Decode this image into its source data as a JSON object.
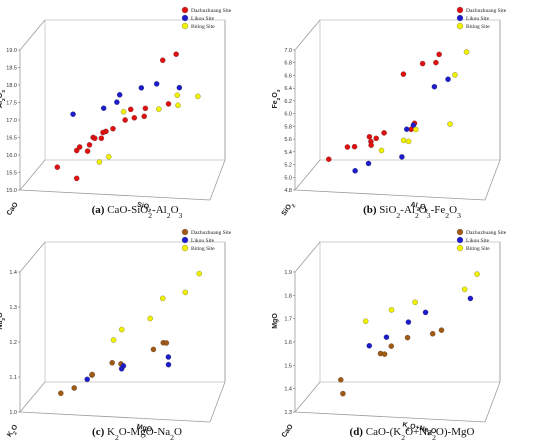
{
  "colors": {
    "Dazhuzhuang Site": "#e01010",
    "Likou Site": "#1c1ccc",
    "Biting Site": "#f0f000",
    "Dazhuzhuang Site (c,d)": "#a05a14"
  },
  "chart_data": [
    {
      "type": "scatter",
      "panel": "a",
      "caption_label": "(a)",
      "caption_text": "CaO-SiO2-Al2O3",
      "zlabel": "Al2O3",
      "xlabel": "SiO2",
      "ylabel": "CaO",
      "zticks": [
        "15.0",
        "15.5",
        "16.0",
        "16.5",
        "17.0",
        "17.5",
        "18.0",
        "18.5",
        "19.0"
      ],
      "zlim": [
        15.0,
        19.0
      ],
      "legend": [
        "Dazhuzhuang Site",
        "Likou Site",
        "Biting Site"
      ],
      "series": [
        {
          "name": "Dazhuzhuang Site",
          "values": [
            15.2,
            15.4,
            15.8,
            15.9,
            16.0,
            16.1,
            16.2,
            16.2,
            16.3,
            16.4,
            16.5,
            16.6,
            16.7,
            16.8,
            16.9,
            17.0,
            17.0,
            17.2,
            18.5,
            18.6
          ]
        },
        {
          "name": "Likou Site",
          "values": [
            17.0,
            17.2,
            17.3,
            17.5,
            17.6,
            17.7,
            17.8
          ]
        },
        {
          "name": "Biting Site",
          "values": [
            15.6,
            15.7,
            16.9,
            17.1,
            17.3,
            17.4,
            17.5
          ]
        }
      ]
    },
    {
      "type": "scatter",
      "panel": "b",
      "caption_label": "(b)",
      "caption_text": "SiO2-Al2O3-Fe2O3",
      "zlabel": "Fe2O3",
      "xlabel": "Al2O3",
      "ylabel": "SiO2",
      "zticks": [
        "4.8",
        "5.0",
        "5.2",
        "5.4",
        "5.6",
        "5.8",
        "6.0",
        "6.2",
        "6.4",
        "6.6",
        "6.8",
        "7.0"
      ],
      "zlim": [
        4.8,
        7.0
      ],
      "legend": [
        "Dazhuzhuang Site",
        "Likou Site",
        "Biting Site"
      ],
      "series": [
        {
          "name": "Dazhuzhuang Site",
          "values": [
            5.2,
            5.3,
            5.3,
            5.4,
            5.4,
            5.5,
            5.5,
            5.6,
            5.6,
            5.7,
            6.5,
            6.6,
            6.7,
            6.8
          ]
        },
        {
          "name": "Likou Site",
          "values": [
            5.0,
            5.1,
            5.2,
            5.6,
            5.7,
            6.3,
            6.4
          ]
        },
        {
          "name": "Biting Site",
          "values": [
            5.3,
            5.4,
            5.5,
            5.6,
            5.7,
            6.5,
            6.8
          ]
        }
      ]
    },
    {
      "type": "scatter",
      "panel": "c",
      "caption_label": "(c)",
      "caption_text": "K2O-MgO-Na2O",
      "zlabel": "Na2O",
      "xlabel": "MgO",
      "ylabel": "K2O",
      "zticks": [
        "1.0",
        "1.1",
        "1.2",
        "1.3",
        "1.4"
      ],
      "zlim": [
        0.95,
        1.5
      ],
      "legend": [
        "Dazhuzhuang Site",
        "Likou Site",
        "Biting Site"
      ],
      "series": [
        {
          "name": "Dazhuzhuang Site",
          "values": [
            1.0,
            1.02,
            1.05,
            1.08,
            1.1,
            1.12,
            1.15,
            1.18,
            1.2
          ]
        },
        {
          "name": "Likou Site",
          "values": [
            1.05,
            1.08,
            1.1,
            1.12,
            1.15
          ]
        },
        {
          "name": "Biting Site",
          "values": [
            1.2,
            1.25,
            1.3,
            1.35,
            1.4,
            1.45
          ]
        }
      ]
    },
    {
      "type": "scatter",
      "panel": "d",
      "caption_label": "(d)",
      "caption_text": "CaO-(K2O+Na2O)-MgO",
      "zlabel": "MgO",
      "xlabel": "K2O+Na2O",
      "ylabel": "CaO",
      "zticks": [
        "1.3",
        "1.4",
        "1.5",
        "1.6",
        "1.7",
        "1.8",
        "1.9"
      ],
      "zlim": [
        1.3,
        1.9
      ],
      "legend": [
        "Dazhuzhuang Site",
        "Likou Site",
        "Biting Site"
      ],
      "series": [
        {
          "name": "Dazhuzhuang Site",
          "values": [
            1.35,
            1.4,
            1.5,
            1.52,
            1.55,
            1.58,
            1.6,
            1.62
          ]
        },
        {
          "name": "Likou Site",
          "values": [
            1.55,
            1.6,
            1.65,
            1.7,
            1.75
          ]
        },
        {
          "name": "Biting Site",
          "values": [
            1.65,
            1.7,
            1.75,
            1.8,
            1.85
          ]
        }
      ]
    }
  ]
}
